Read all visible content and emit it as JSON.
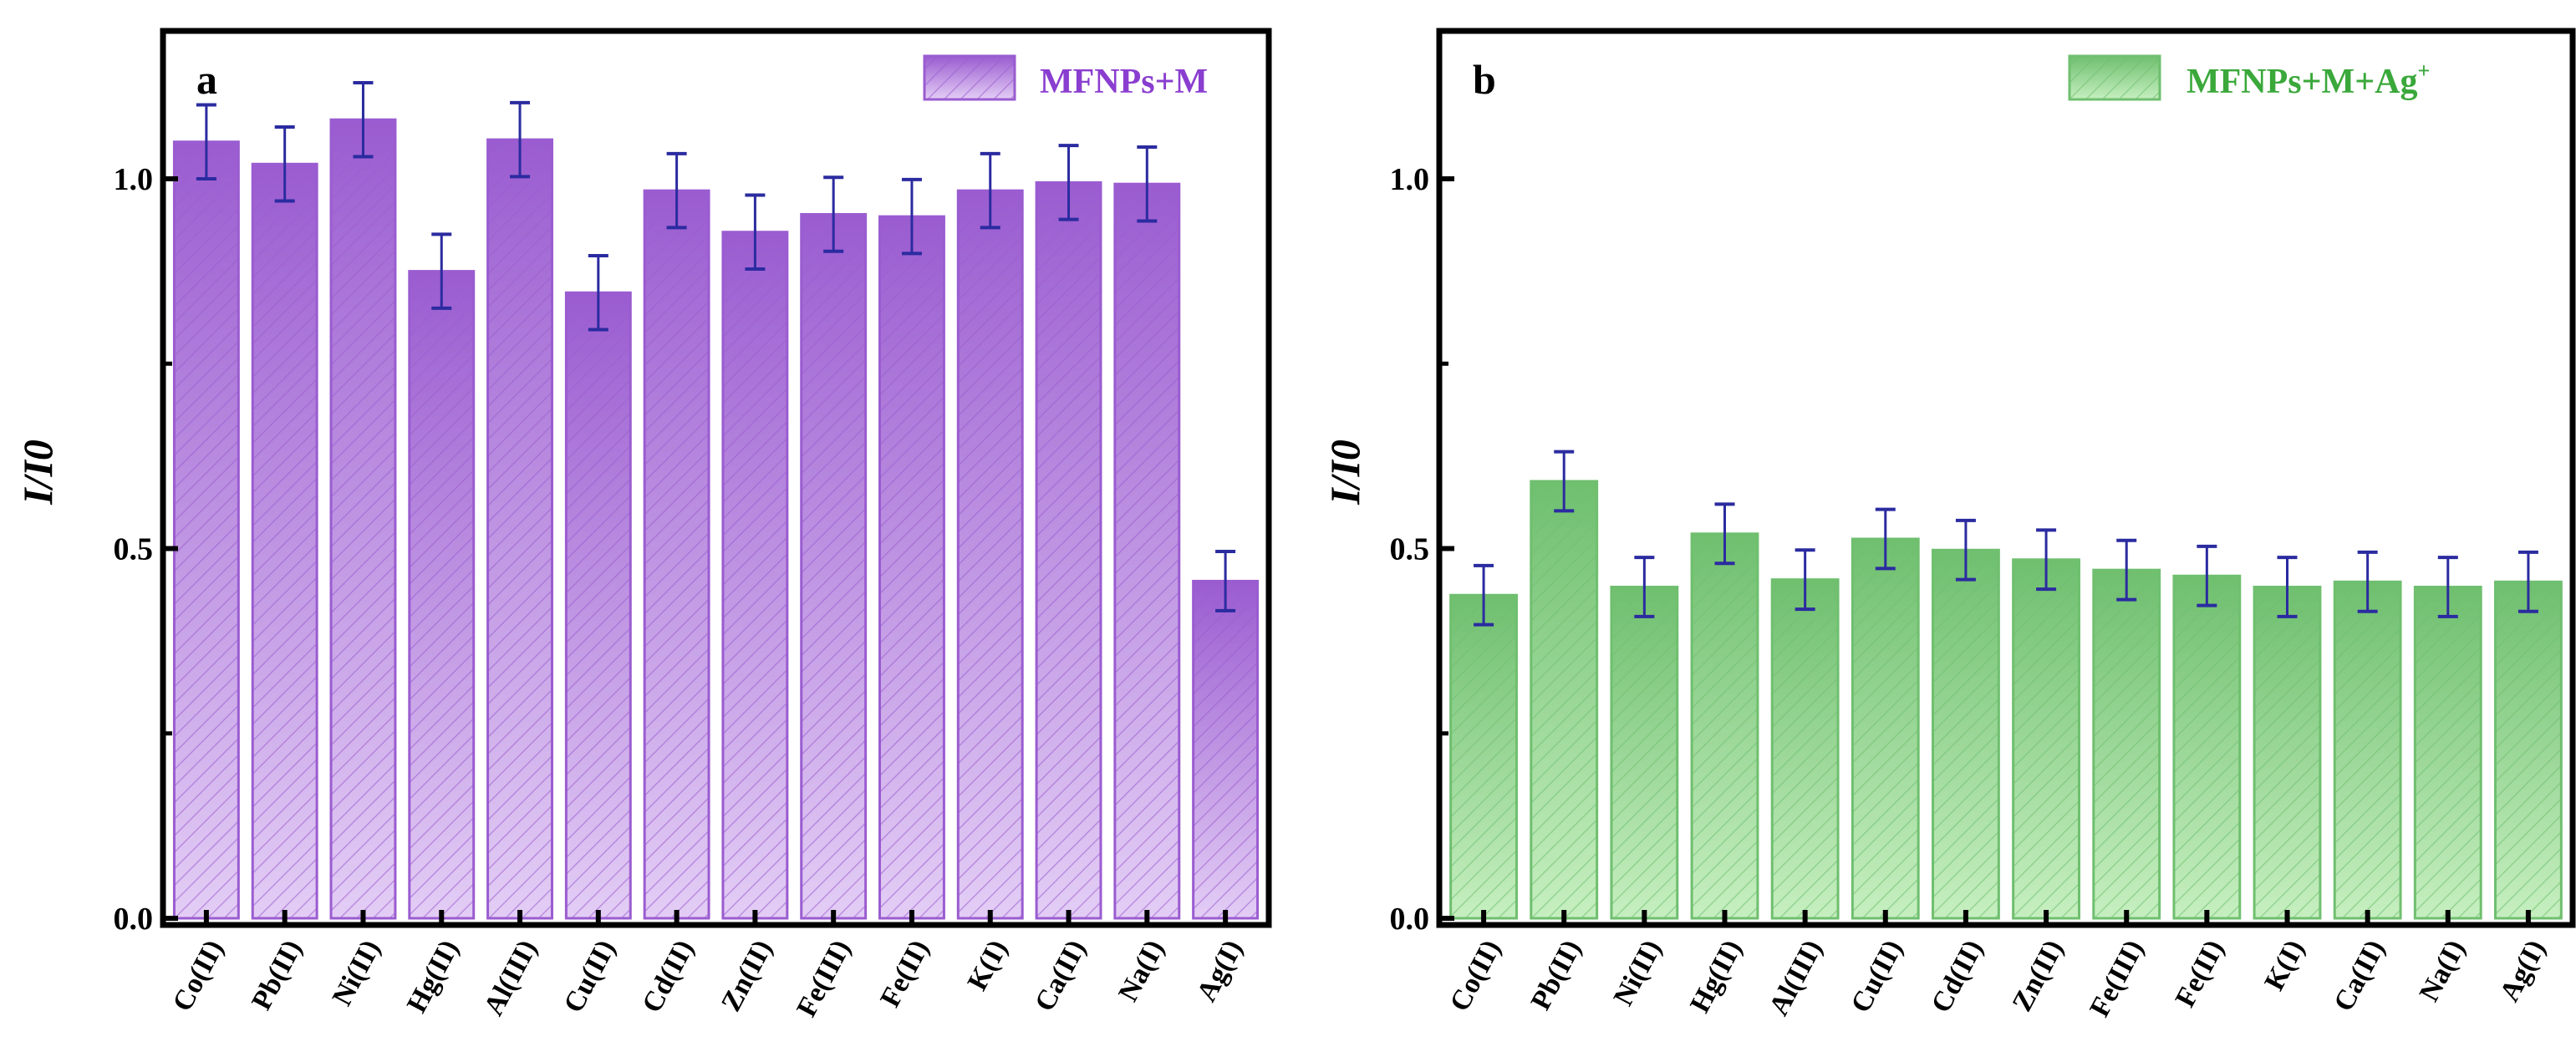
{
  "chart_data": [
    {
      "type": "bar",
      "panel_label": "a",
      "legend": "MFNPs+M",
      "legend_placement": "top-right",
      "ylabel": "I/I0",
      "ylim": [
        0,
        1.2
      ],
      "yticks": [
        "0.0",
        "0.5",
        "1.0"
      ],
      "categories": [
        "Co(II)",
        "Pb(II)",
        "Ni(II)",
        "Hg(II)",
        "Al(III)",
        "Cu(II)",
        "Cd(II)",
        "Zn(II)",
        "Fe(III)",
        "Fe(II)",
        "K(I)",
        "Ca(II)",
        "Na(I)",
        "Ag(I)"
      ],
      "values": [
        1.05,
        1.02,
        1.08,
        0.875,
        1.053,
        0.846,
        0.984,
        0.928,
        0.952,
        0.949,
        0.984,
        0.995,
        0.993,
        0.456
      ],
      "errors": [
        0.05,
        0.05,
        0.05,
        0.05,
        0.05,
        0.05,
        0.05,
        0.05,
        0.05,
        0.05,
        0.05,
        0.05,
        0.05,
        0.04
      ],
      "color": "#9a5cd0",
      "color_light": "#e3cdf5",
      "error_color": "#2b2ba0"
    },
    {
      "type": "bar",
      "panel_label": "b",
      "legend": "MFNPs+M+Ag",
      "legend_sup": "+",
      "legend_placement": "top-right",
      "ylabel": "I/I0",
      "ylim": [
        0,
        1.2
      ],
      "yticks": [
        "0.0",
        "0.5",
        "1.0"
      ],
      "categories": [
        "Co(II)",
        "Pb(II)",
        "Ni(II)",
        "Hg(II)",
        "Al(III)",
        "Cu(II)",
        "Cd(II)",
        "Zn(II)",
        "Fe(III)",
        "Fe(II)",
        "K(I)",
        "Ca(II)",
        "Na(I)",
        "Ag(I)"
      ],
      "values": [
        0.437,
        0.591,
        0.448,
        0.52,
        0.458,
        0.513,
        0.498,
        0.485,
        0.471,
        0.463,
        0.448,
        0.455,
        0.448,
        0.455
      ],
      "errors": [
        0.04,
        0.04,
        0.04,
        0.04,
        0.04,
        0.04,
        0.04,
        0.04,
        0.04,
        0.04,
        0.04,
        0.04,
        0.04,
        0.04
      ],
      "color": "#6fbf6f",
      "color_light": "#c6efc0",
      "error_color": "#2b2ba0"
    }
  ]
}
